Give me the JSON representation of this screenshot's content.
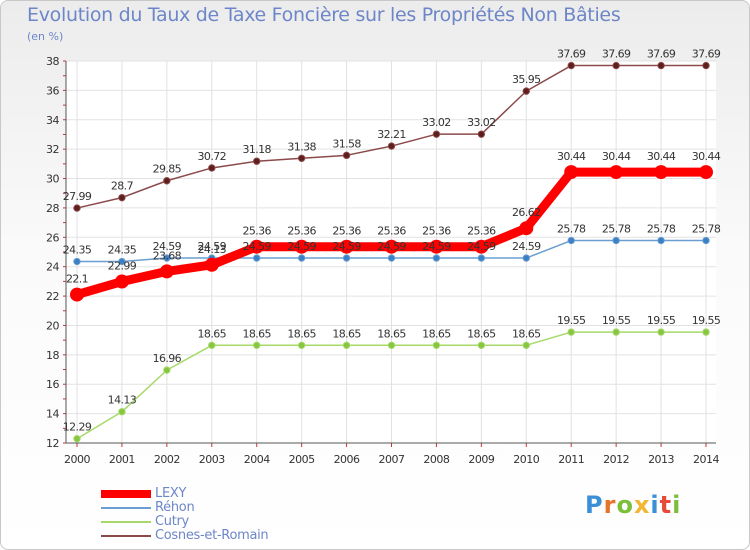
{
  "page": {
    "title": "Evolution du Taux de Taxe Foncière sur les Propriétés Non Bâties",
    "subtitle": "(en %)",
    "logo": "Proxiti"
  },
  "chart_data": {
    "type": "line",
    "x": [
      "2000",
      "2001",
      "2002",
      "2003",
      "2004",
      "2005",
      "2006",
      "2007",
      "2008",
      "2009",
      "2010",
      "2011",
      "2012",
      "2013",
      "2014"
    ],
    "ylim": [
      12,
      38
    ],
    "yticks": [
      12,
      14,
      16,
      18,
      20,
      22,
      24,
      26,
      28,
      30,
      32,
      34,
      36,
      38
    ],
    "grid": true,
    "legend_position": "bottom-left",
    "series": [
      {
        "name": "LEXY",
        "color": "#ff0000",
        "emphasis": true,
        "values": [
          22.1,
          22.99,
          23.68,
          24.13,
          25.36,
          25.36,
          25.36,
          25.36,
          25.36,
          25.36,
          26.62,
          30.44,
          30.44,
          30.44,
          30.44
        ],
        "labels": [
          "22.1",
          "22.99",
          "23.68",
          "24.13",
          "25.36",
          "25.36",
          "25.36",
          "25.36",
          "25.36",
          "25.36",
          "26.62",
          "30.44",
          "30.44",
          "30.44",
          "30.44"
        ]
      },
      {
        "name": "Réhon",
        "color": "#6a9ed0",
        "marker": "#3b7fc4",
        "values": [
          24.35,
          24.35,
          24.59,
          24.59,
          24.59,
          24.59,
          24.59,
          24.59,
          24.59,
          24.59,
          24.59,
          25.78,
          25.78,
          25.78,
          25.78
        ],
        "labels": [
          "24.35",
          "24.35",
          "24.59",
          "24.59",
          "24.59",
          "24.59",
          "24.59",
          "24.59",
          "24.59",
          "24.59",
          "24.59",
          "25.78",
          "25.78",
          "25.78",
          "25.78"
        ]
      },
      {
        "name": "Cutry",
        "color": "#a6d96a",
        "marker": "#86c640",
        "values": [
          12.29,
          14.13,
          16.96,
          18.65,
          18.65,
          18.65,
          18.65,
          18.65,
          18.65,
          18.65,
          18.65,
          19.55,
          19.55,
          19.55,
          19.55
        ],
        "labels": [
          "12.29",
          "14.13",
          "16.96",
          "18.65",
          "18.65",
          "18.65",
          "18.65",
          "18.65",
          "18.65",
          "18.65",
          "18.65",
          "19.55",
          "19.55",
          "19.55",
          "19.55"
        ]
      },
      {
        "name": "Cosnes-et-Romain",
        "color": "#8b4a4a",
        "marker": "#5e1e1e",
        "values": [
          27.99,
          28.7,
          29.85,
          30.72,
          31.18,
          31.38,
          31.58,
          32.21,
          33.02,
          33.02,
          35.95,
          37.69,
          37.69,
          37.69,
          37.69
        ],
        "labels": [
          "27.99",
          "28.7",
          "29.85",
          "30.72",
          "31.18",
          "31.38",
          "31.58",
          "32.21",
          "33.02",
          "33.02",
          "35.95",
          "37.69",
          "37.69",
          "37.69",
          "37.69"
        ]
      }
    ]
  }
}
